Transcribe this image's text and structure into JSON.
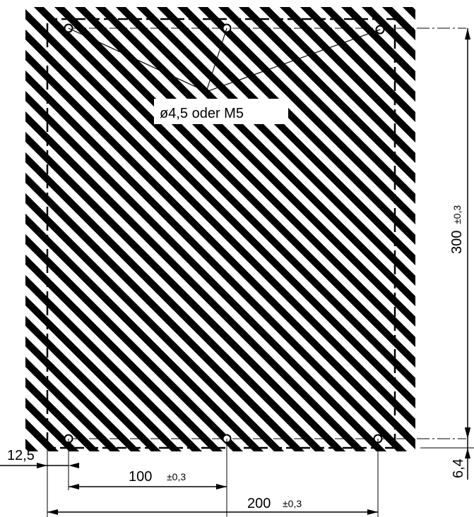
{
  "callout": {
    "hole_label": "ø4,5 oder M5"
  },
  "dimensions": {
    "width_total": {
      "value": "200",
      "tolerance": "±0,3"
    },
    "hole_spacing": {
      "value": "100",
      "tolerance": "±0,3"
    },
    "height_total": {
      "value": "300",
      "tolerance": "±0,3"
    },
    "left_offset": {
      "value": "12,5"
    },
    "bottom_offset": {
      "value": "6,4"
    }
  },
  "colors": {
    "line": "#000000",
    "hatch": "#000000",
    "label_background": "#ffffff"
  }
}
